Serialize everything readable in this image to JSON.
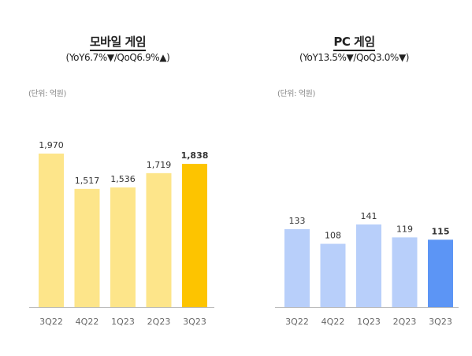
{
  "chart_data": [
    {
      "type": "bar",
      "title": "모바일 게임",
      "subtitle": "(YoY6.7%▼/QoQ6.9%▲)",
      "unit": "(단위: 억원)",
      "categories": [
        "3Q22",
        "4Q22",
        "1Q23",
        "2Q23",
        "3Q23"
      ],
      "values": [
        1970,
        1517,
        1536,
        1719,
        1838
      ],
      "labels": [
        "1,970",
        "1,517",
        "1,536",
        "1,719",
        "1,838"
      ],
      "ylim": [
        0,
        2200
      ],
      "colors": [
        "#fde58a",
        "#fde58a",
        "#fde58a",
        "#fde58a",
        "#fdc400"
      ],
      "highlight_index": 4,
      "grid": false
    },
    {
      "type": "bar",
      "title": "PC 게임",
      "subtitle": "(YoY13.5%▼/QoQ3.0%▼)",
      "unit": "(단위: 억원)",
      "categories": [
        "3Q22",
        "4Q22",
        "1Q23",
        "2Q23",
        "3Q23"
      ],
      "values": [
        133,
        108,
        141,
        119,
        115
      ],
      "labels": [
        "133",
        "108",
        "141",
        "119",
        "115"
      ],
      "ylim": [
        0,
        500
      ],
      "colors": [
        "#b8cffa",
        "#b8cffa",
        "#b8cffa",
        "#b8cffa",
        "#5c95f5"
      ],
      "highlight_index": 4,
      "grid": false
    }
  ]
}
